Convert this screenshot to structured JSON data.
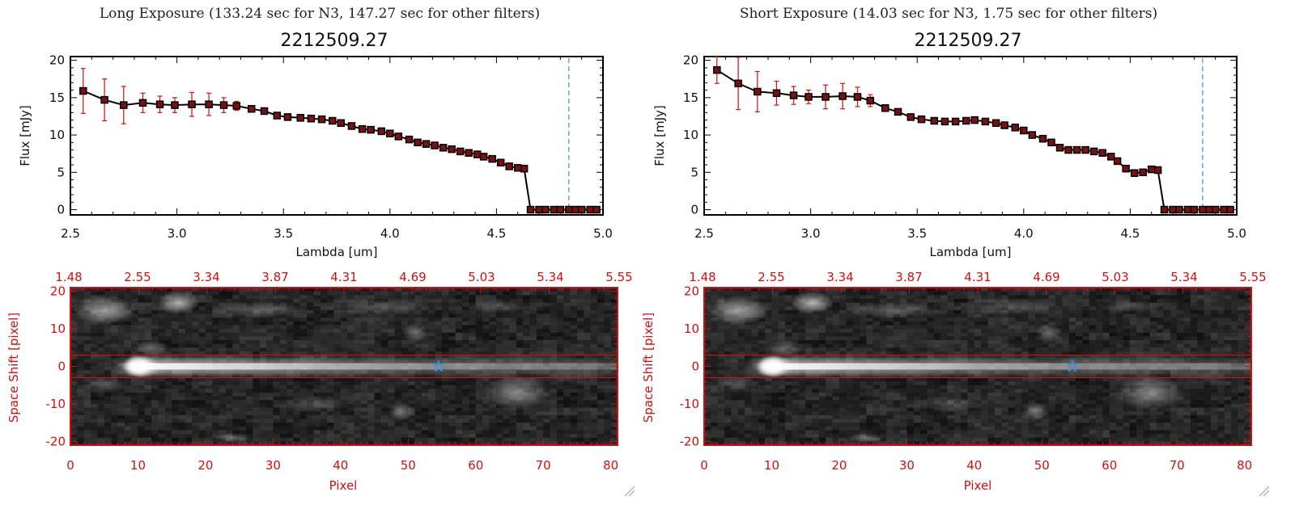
{
  "colors": {
    "spectrum": "#000000",
    "error_bar": "#d01010",
    "marker_fill": "#7a1010",
    "cutoff_line": "#3a8fe0",
    "image_axes": "#d01010",
    "star_marker": "#3a8fe0"
  },
  "resize_grip_icon": "resize-grip-icon",
  "chart_data": [
    {
      "type": "line",
      "title": "Long Exposure (133.24 sec for N3, 147.27 sec for other filters)",
      "subtitle": "2212509.27",
      "xlabel": "Lambda [um]",
      "ylabel": "Flux [mJy]",
      "xlim": [
        2.5,
        5.0
      ],
      "ylim": [
        -0.7,
        20.5
      ],
      "xticks": [
        "2.5",
        "3.0",
        "3.5",
        "4.0",
        "4.5",
        "5.0"
      ],
      "yticks": [
        "0",
        "5",
        "10",
        "15",
        "20"
      ],
      "cutoff_x": 4.84,
      "x": [
        2.56,
        2.66,
        2.75,
        2.84,
        2.92,
        2.99,
        3.07,
        3.15,
        3.22,
        3.28,
        3.35,
        3.41,
        3.47,
        3.52,
        3.58,
        3.63,
        3.68,
        3.73,
        3.77,
        3.82,
        3.87,
        3.91,
        3.96,
        4.0,
        4.04,
        4.09,
        4.13,
        4.17,
        4.21,
        4.25,
        4.29,
        4.33,
        4.37,
        4.41,
        4.44,
        4.48,
        4.52,
        4.56,
        4.6,
        4.63,
        4.66,
        4.7,
        4.73,
        4.77,
        4.8,
        4.84,
        4.87,
        4.9,
        4.94,
        4.97
      ],
      "y": [
        15.9,
        14.7,
        14.0,
        14.3,
        14.1,
        14.0,
        14.1,
        14.1,
        14.0,
        13.9,
        13.5,
        13.2,
        12.6,
        12.4,
        12.3,
        12.2,
        12.1,
        11.9,
        11.6,
        11.2,
        10.8,
        10.7,
        10.5,
        10.2,
        9.8,
        9.4,
        9.0,
        8.8,
        8.6,
        8.3,
        8.1,
        7.8,
        7.6,
        7.4,
        7.1,
        6.8,
        6.3,
        5.8,
        5.6,
        5.5,
        0,
        0,
        0,
        0,
        0,
        0,
        0,
        0,
        0,
        0
      ],
      "yerr": [
        3.0,
        2.8,
        2.5,
        1.3,
        1.1,
        1.0,
        1.6,
        1.5,
        1.0,
        0.6,
        0.3,
        0,
        0,
        0,
        0,
        0,
        0,
        0,
        0,
        0,
        0,
        0,
        0,
        0,
        0,
        0,
        0,
        0,
        0,
        0,
        0,
        0,
        0,
        0,
        0,
        0,
        0,
        0,
        0,
        0,
        0,
        0,
        0,
        0,
        0,
        0,
        0,
        0,
        0,
        0
      ]
    },
    {
      "type": "line",
      "title": "Short Exposure (14.03 sec for N3, 1.75 sec for other filters)",
      "subtitle": "2212509.27",
      "xlabel": "Lambda [um]",
      "ylabel": "Flux [mJy]",
      "xlim": [
        2.5,
        5.0
      ],
      "ylim": [
        -0.7,
        20.5
      ],
      "xticks": [
        "2.5",
        "3.0",
        "3.5",
        "4.0",
        "4.5",
        "5.0"
      ],
      "yticks": [
        "0",
        "5",
        "10",
        "15",
        "20"
      ],
      "cutoff_x": 4.84,
      "x": [
        2.56,
        2.66,
        2.75,
        2.84,
        2.92,
        2.99,
        3.07,
        3.15,
        3.22,
        3.28,
        3.35,
        3.41,
        3.47,
        3.52,
        3.58,
        3.63,
        3.68,
        3.73,
        3.77,
        3.82,
        3.87,
        3.91,
        3.96,
        4.0,
        4.04,
        4.09,
        4.13,
        4.17,
        4.21,
        4.25,
        4.29,
        4.33,
        4.37,
        4.41,
        4.44,
        4.48,
        4.52,
        4.56,
        4.6,
        4.63,
        4.66,
        4.7,
        4.73,
        4.77,
        4.8,
        4.84,
        4.87,
        4.9,
        4.94,
        4.97
      ],
      "y": [
        18.7,
        16.9,
        15.8,
        15.6,
        15.3,
        15.1,
        15.1,
        15.2,
        15.1,
        14.6,
        13.6,
        13.1,
        12.4,
        12.1,
        11.9,
        11.8,
        11.8,
        11.9,
        12.0,
        11.8,
        11.6,
        11.3,
        11.0,
        10.6,
        10.0,
        9.5,
        9.0,
        8.3,
        8.0,
        8.0,
        8.0,
        7.8,
        7.6,
        7.1,
        6.5,
        5.5,
        4.9,
        5.0,
        5.4,
        5.3,
        0,
        0,
        0,
        0,
        0,
        0,
        0,
        0,
        0,
        0
      ],
      "yerr": [
        1.8,
        3.5,
        2.7,
        1.6,
        1.2,
        0.9,
        1.6,
        1.7,
        1.3,
        0.8,
        0.4,
        0,
        0,
        0,
        0,
        0,
        0,
        0,
        0,
        0,
        0,
        0,
        0,
        0,
        0,
        0,
        0,
        0,
        0,
        0,
        0,
        0,
        0,
        0,
        0,
        0,
        0,
        0,
        0,
        0,
        0,
        0,
        0,
        0,
        0,
        0,
        0,
        0,
        0,
        0
      ]
    },
    {
      "type": "heatmap",
      "xlabel": "Pixel",
      "ylabel": "Space Shift [pixel]",
      "xlim": [
        0,
        81
      ],
      "ylim": [
        -21,
        21
      ],
      "xticks": [
        "0",
        "10",
        "20",
        "30",
        "40",
        "50",
        "60",
        "70",
        "80"
      ],
      "yticks": [
        "-20",
        "-10",
        "0",
        "10",
        "20"
      ],
      "top_axis_ticks": [
        "1.48",
        "2.55",
        "3.34",
        "3.87",
        "4.31",
        "4.69",
        "5.03",
        "5.34",
        "5.55"
      ],
      "aperture_y": [
        -3,
        3
      ],
      "star_marker": {
        "x": 54.5,
        "y": 0
      }
    },
    {
      "type": "heatmap",
      "xlabel": "Pixel",
      "ylabel": "Space Shift [pixel]",
      "xlim": [
        0,
        81
      ],
      "ylim": [
        -21,
        21
      ],
      "xticks": [
        "0",
        "10",
        "20",
        "30",
        "40",
        "50",
        "60",
        "70",
        "80"
      ],
      "yticks": [
        "-20",
        "-10",
        "0",
        "10",
        "20"
      ],
      "top_axis_ticks": [
        "1.48",
        "2.55",
        "3.34",
        "3.87",
        "4.31",
        "4.69",
        "5.03",
        "5.34",
        "5.55"
      ],
      "aperture_y": [
        -3,
        3
      ],
      "star_marker": {
        "x": 54.5,
        "y": 0
      }
    }
  ]
}
